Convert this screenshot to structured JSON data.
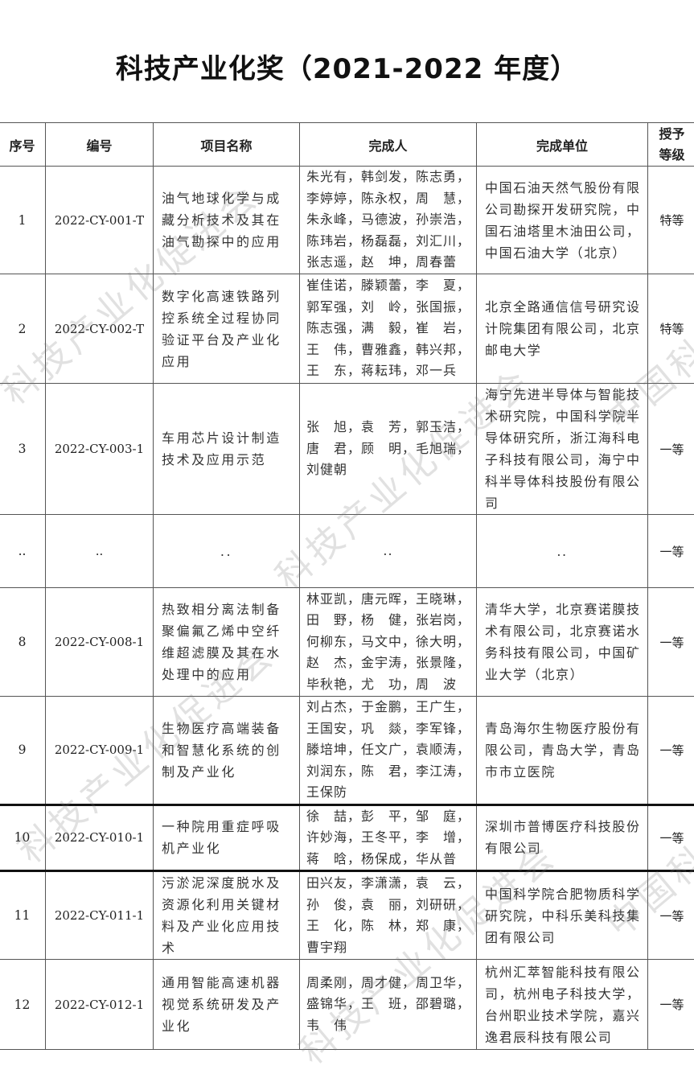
{
  "title": "科技产业化奖（2021-2022 年度）",
  "watermark": [
    "科技产业化促进会",
    "中国科技产业化促进会"
  ],
  "table": {
    "headers": [
      "序号",
      "编号",
      "项目名称",
      "完成人",
      "完成单位",
      "授予\n等级"
    ],
    "rows": [
      {
        "no": "1",
        "code": "2022-CY-001-T",
        "name": "油气地球化学与成藏分析技术及其在油气勘探中的应用",
        "people": "朱光有，韩剑发，陈志勇，\n李婷婷，陈永权，周　慧，\n朱永峰，马德波，孙崇浩，\n陈玮岩，杨磊磊，刘汇川，\n张志遥，赵　坤，周春蕾",
        "unit": "中国石油天然气股份有限公司勘探开发研究院，中国石油塔里木油田公司，中国石油大学（北京）",
        "grade": "特等",
        "h": 134
      },
      {
        "no": "2",
        "code": "2022-CY-002-T",
        "name": "数字化高速铁路列控系统全过程协同验证平台及产业化应用",
        "people": "崔佳诺，滕颖蕾，李　夏，\n郭军强，刘　岭，张国振，\n陈志强，满　毅，崔　岩，\n王　伟，曹雅鑫，韩兴邦，\n王　东，蒋耘玮，邓一兵",
        "unit": "北京全路通信信号研究设计院集团有限公司，北京邮电大学",
        "grade": "特等",
        "h": 136
      },
      {
        "no": "3",
        "code": "2022-CY-003-1",
        "name": "车用芯片设计制造技术及应用示范",
        "people": "张　旭，袁　芳，郭玉洁，\n唐　君，顾　明，毛旭瑞，\n刘健朝",
        "unit": "海宁先进半导体与智能技术研究院，中国科学院半导体研究所，浙江海科电子科技有限公司，海宁中科半导体科技股份有限公司",
        "grade": "一等",
        "h": 136
      },
      {
        "no": "..",
        "code": "..",
        "name": "..",
        "people": "..",
        "unit": "..",
        "grade": "一等",
        "h": 91,
        "dots": true
      },
      {
        "no": "8",
        "code": "2022-CY-008-1",
        "name": "热致相分离法制备聚偏氟乙烯中空纤维超滤膜及其在水处理中的应用",
        "people": "林亚凯，唐元晖，王晓琳，\n田　野，杨　健，张岩岗，\n何柳东，马文中，徐大明，\n赵　杰，金宇涛，张景隆，\n毕秋艳，尤　功，周　波",
        "unit": "清华大学，北京赛诺膜技术有限公司，北京赛诺水务科技有限公司，中国矿业大学（北京）",
        "grade": "一等",
        "h": 135
      },
      {
        "no": "9",
        "code": "2022-CY-009-1",
        "name": "生物医疗高端装备和智慧化系统的创制及产业化",
        "people": "刘占杰，于金鹏，王广生，\n王国安，巩　燚，李军锋，\n滕培坤，任文广，袁顺涛，\n刘润东，陈　君，李江涛，\n王保防",
        "unit": "青岛海尔生物医疗股份有限公司，青岛大学，青岛市市立医院",
        "grade": "一等",
        "h": 134
      },
      {
        "no": "10",
        "code": "2022-CY-010-1",
        "name": "一种院用重症呼吸机产业化",
        "people": "徐　喆，彭　平，邹　庭，\n许妙海，王冬平，李　增，\n蒋　晗，杨保成，华从普",
        "unit": "深圳市普博医疗科技股份有限公司",
        "grade": "一等",
        "h": 82,
        "thick": true
      },
      {
        "no": "11",
        "code": "2022-CY-011-1",
        "name": "污淤泥深度脱水及资源化利用关键材料及产业化应用技术",
        "people": "田兴友，李潇潇，袁　云，\n孙　俊，袁　丽，刘研研，\n王　化，陈　林，郑　康，\n曹宇翔",
        "unit": "中国科学院合肥物质科学研究院，中科乐美科技集团有限公司",
        "grade": "一等",
        "h": 109,
        "thick": true
      },
      {
        "no": "12",
        "code": "2022-CY-012-1",
        "name": "通用智能高速机器视觉系统研发及产业化",
        "people": "周柔刚，周才健，周卫华，\n盛锦华，王　班，邵碧璐，\n韦　伟",
        "unit": "杭州汇萃智能科技有限公司，杭州电子科技大学，台州职业技术学院，嘉兴逸君辰科技有限公司",
        "grade": "一等",
        "h": 112
      }
    ]
  }
}
